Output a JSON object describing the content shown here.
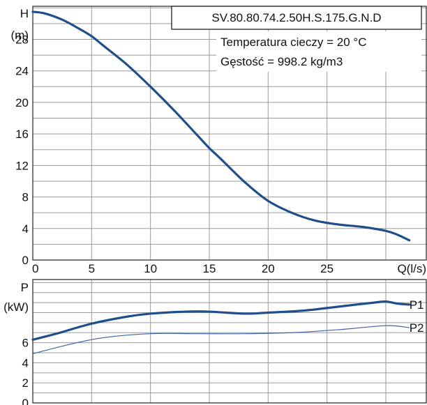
{
  "chart_data": [
    {
      "type": "line",
      "title": "SV.80.80.74.2.50H.S.175.G.N.D",
      "annotations": [
        "Temperatura cieczy = 20 °C",
        "Gęstość = 998.2 kg/m3"
      ],
      "ylabel": [
        "H",
        "(m)"
      ],
      "xlabel": "Q(l/s)",
      "xlim": [
        0,
        33.5
      ],
      "ylim": [
        0,
        32.2
      ],
      "xticks": [
        0,
        5,
        10,
        15,
        20,
        25
      ],
      "yticks": [
        0,
        4,
        8,
        12,
        16,
        20,
        24,
        28
      ],
      "grid": true,
      "series": [
        {
          "color": "#1f4e8c",
          "x": [
            0,
            1,
            2.5,
            4,
            5,
            6,
            8,
            10,
            12,
            14,
            15,
            16,
            18,
            20,
            22,
            24,
            26,
            28,
            30,
            31,
            32
          ],
          "y": [
            31.5,
            31.3,
            30.5,
            29.3,
            28.4,
            27.2,
            24.8,
            22.0,
            19.0,
            15.8,
            14.2,
            12.8,
            9.9,
            7.5,
            6.0,
            5.0,
            4.5,
            4.2,
            3.7,
            3.2,
            2.5
          ]
        }
      ]
    },
    {
      "type": "line",
      "ylabel": [
        "P",
        "(kW)"
      ],
      "xlim": [
        0,
        33.5
      ],
      "ylim": [
        0,
        12.3
      ],
      "yticks": [
        0,
        2,
        4,
        6
      ],
      "grid": true,
      "series": [
        {
          "name": "P1",
          "color": "#1f4e8c",
          "width": 3.2,
          "x": [
            0,
            2,
            5,
            8,
            10,
            13,
            15,
            18,
            20,
            23,
            26,
            29,
            30,
            31,
            32
          ],
          "y": [
            6.3,
            6.9,
            7.9,
            8.6,
            8.9,
            9.1,
            9.1,
            8.9,
            9.0,
            9.2,
            9.6,
            10.0,
            10.1,
            9.9,
            9.8
          ]
        },
        {
          "name": "P2",
          "color": "#3a64a8",
          "width": 1.2,
          "x": [
            0,
            3,
            6,
            10,
            14,
            18,
            22,
            26,
            30,
            32
          ],
          "y": [
            4.9,
            5.8,
            6.5,
            6.9,
            6.9,
            6.9,
            7.0,
            7.3,
            7.7,
            7.5
          ]
        }
      ]
    }
  ]
}
